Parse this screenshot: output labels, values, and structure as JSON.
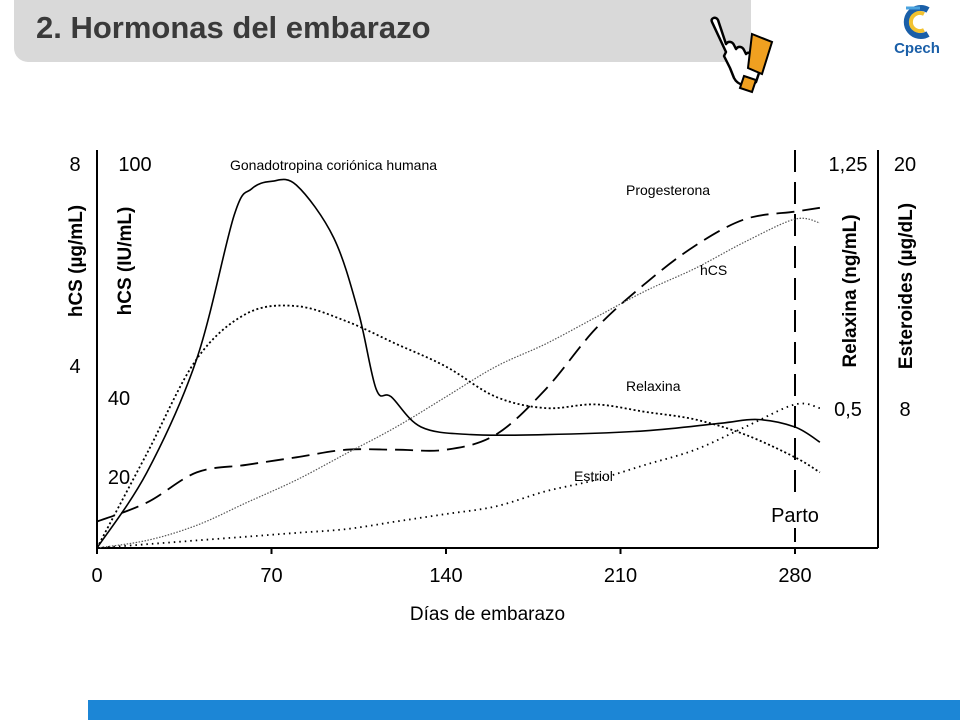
{
  "header": {
    "title": "2. Hormonas del embarazo"
  },
  "logo": {
    "text": "Cpech"
  },
  "icons": {
    "hand": "pointing-hand-icon",
    "alert": "exclamation-icon"
  },
  "colors": {
    "title_bar": "#d9d9d9",
    "footer_bar": "#1c86d6",
    "logo_blue": "#1a5fa8",
    "alert_orange": "#f0a020"
  },
  "chart_data": {
    "type": "line",
    "xlabel": "Días de embarazo",
    "x_ticks": [
      "0",
      "70",
      "140",
      "210",
      "280"
    ],
    "xlim": [
      0,
      290
    ],
    "marker_label": "Parto",
    "marker_x": 280,
    "left_axes": [
      {
        "label": "hCS (µg/mL)",
        "ticks": [
          "8",
          "4"
        ]
      },
      {
        "label": "hCS (IU/mL)",
        "ticks": [
          "100",
          "40",
          "20"
        ]
      }
    ],
    "right_axes": [
      {
        "label": "Relaxina (ng/mL)",
        "ticks": [
          "1,25",
          "0,5"
        ]
      },
      {
        "label": "Esteroides (µg/dL)",
        "ticks": [
          "20",
          "8"
        ]
      }
    ],
    "normalized_range": [
      0,
      100
    ],
    "series": [
      {
        "name": "Gonadotropina coriónica humana",
        "style": "solid",
        "x": [
          0,
          20,
          40,
          55,
          62,
          70,
          80,
          95,
          105,
          112,
          118,
          130,
          150,
          180,
          220,
          250,
          265,
          280,
          290
        ],
        "y": [
          0,
          20,
          50,
          88,
          95,
          97,
          96,
          82,
          62,
          42,
          40,
          32,
          30,
          30,
          31,
          33,
          34,
          32,
          28
        ]
      },
      {
        "name": "Progesterona",
        "style": "dashed",
        "x": [
          0,
          20,
          40,
          60,
          80,
          100,
          120,
          140,
          160,
          180,
          200,
          220,
          240,
          260,
          280,
          290
        ],
        "y": [
          7,
          12,
          20,
          22,
          24,
          26,
          26,
          26,
          30,
          42,
          58,
          70,
          80,
          87,
          89,
          90
        ]
      },
      {
        "name": "hCS",
        "style": "fine-dotted",
        "x": [
          0,
          20,
          40,
          60,
          80,
          100,
          120,
          140,
          160,
          180,
          200,
          220,
          240,
          260,
          280,
          290
        ],
        "y": [
          0,
          2,
          6,
          12,
          18,
          25,
          32,
          40,
          48,
          54,
          61,
          68,
          74,
          81,
          87,
          86
        ]
      },
      {
        "name": "Relaxina",
        "style": "dotted",
        "x": [
          0,
          20,
          40,
          60,
          80,
          100,
          120,
          140,
          160,
          180,
          200,
          220,
          240,
          260,
          280,
          290
        ],
        "y": [
          0,
          25,
          50,
          62,
          64,
          60,
          54,
          48,
          40,
          37,
          38,
          36,
          34,
          30,
          24,
          20
        ]
      },
      {
        "name": "Estriol",
        "style": "sparse-dotted",
        "x": [
          0,
          20,
          40,
          60,
          80,
          100,
          120,
          140,
          160,
          180,
          200,
          220,
          240,
          260,
          280,
          290
        ],
        "y": [
          0,
          1,
          2,
          3,
          4,
          5,
          7,
          9,
          11,
          15,
          18,
          22,
          26,
          32,
          38,
          37
        ]
      }
    ]
  }
}
